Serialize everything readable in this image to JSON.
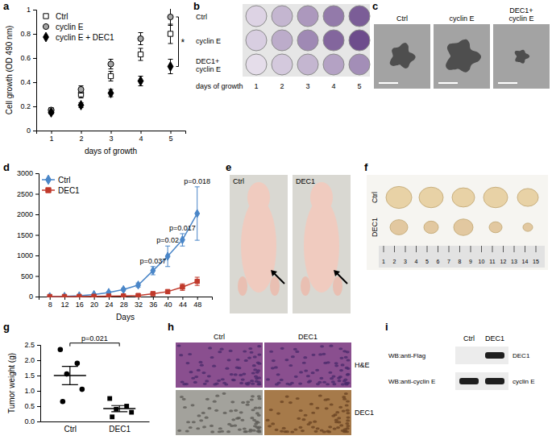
{
  "chart_data": [
    {
      "type": "scatter",
      "xlabel": "days of growth",
      "ylabel": "Cell growth (OD 490 nm)",
      "x": [
        1,
        2,
        3,
        4,
        5
      ],
      "xlim": [
        0.5,
        5.5
      ],
      "xticks": [
        1,
        2,
        3,
        4,
        5
      ],
      "ylim": [
        0,
        1
      ],
      "yticks": [
        0,
        0.2,
        0.4,
        0.6,
        0.8,
        1
      ],
      "legend": "top-left",
      "series": [
        {
          "name": "Ctrl",
          "color": "#ffffff",
          "marker": "square",
          "values": [
            0.16,
            0.3,
            0.45,
            0.63,
            0.8
          ],
          "errors": [
            0.02,
            0.03,
            0.04,
            0.05,
            0.08
          ]
        },
        {
          "name": "cyclin E",
          "color": "#a6a6a6",
          "marker": "circle",
          "values": [
            0.17,
            0.34,
            0.55,
            0.76,
            0.94
          ],
          "errors": [
            0.02,
            0.03,
            0.04,
            0.05,
            0.07
          ]
        },
        {
          "name": "cyclin E + DEC1",
          "color": "#000000",
          "marker": "diamond",
          "values": [
            0.15,
            0.21,
            0.31,
            0.41,
            0.53
          ],
          "errors": [
            0.01,
            0.02,
            0.03,
            0.04,
            0.06
          ]
        }
      ],
      "annotations": [
        {
          "text": "*",
          "x": 5,
          "between": [
            "cyclin E",
            "cyclin E + DEC1"
          ]
        }
      ]
    },
    {
      "type": "line",
      "xlabel": "Days",
      "x": [
        8,
        12,
        16,
        20,
        24,
        28,
        32,
        36,
        40,
        44,
        48
      ],
      "xlim": [
        5,
        52
      ],
      "xticks": [
        8,
        12,
        16,
        20,
        24,
        28,
        32,
        36,
        40,
        44,
        48
      ],
      "ylim": [
        0,
        3000
      ],
      "yticks": [
        0,
        500,
        1000,
        1500,
        2000,
        2500,
        3000
      ],
      "legend": "top-left",
      "series": [
        {
          "name": "Ctrl",
          "color": "#4a86c8",
          "marker": "diamond",
          "values": [
            0,
            5,
            20,
            50,
            100,
            170,
            280,
            630,
            980,
            1380,
            2020
          ],
          "errors": [
            0,
            2,
            5,
            10,
            20,
            30,
            50,
            100,
            250,
            150,
            650
          ]
        },
        {
          "name": "DEC1",
          "color": "#c0392b",
          "marker": "square",
          "values": [
            0,
            0,
            2,
            5,
            10,
            15,
            25,
            70,
            120,
            230,
            370
          ],
          "errors": [
            0,
            0,
            1,
            2,
            3,
            5,
            8,
            20,
            40,
            80,
            100
          ]
        }
      ],
      "annotations": [
        {
          "text": "p=0.037",
          "x": 36,
          "series": "Ctrl"
        },
        {
          "text": "p=0.02",
          "x": 40,
          "series": "Ctrl"
        },
        {
          "text": "p=0.017",
          "x": 44,
          "series": "Ctrl"
        },
        {
          "text": "p=0.018",
          "x": 48,
          "series": "Ctrl"
        }
      ]
    },
    {
      "type": "scatter",
      "ylabel": "Tumor weight (g)",
      "categories": [
        "Ctrl",
        "DEC1"
      ],
      "ylim": [
        0,
        2.5
      ],
      "yticks": [
        {
          "value": 0,
          "label": "0.0"
        },
        {
          "value": 0.5,
          "label": "0.5"
        },
        {
          "value": 1,
          "label": "1.0"
        },
        {
          "value": 1.5,
          "label": "1.5"
        },
        {
          "value": 2,
          "label": "2.0"
        },
        {
          "value": 2.5,
          "label": "2.5"
        }
      ],
      "color": "#000000",
      "groups": [
        {
          "marker": "circle",
          "values": [
            2.35,
            1.9,
            1.55,
            1.05,
            0.65
          ],
          "mean": 1.5,
          "error": 0.3
        },
        {
          "marker": "square",
          "values": [
            0.75,
            0.5,
            0.4,
            0.3,
            0.15
          ],
          "mean": 0.42,
          "error": 0.1
        }
      ],
      "annotations": [
        {
          "text": "p=0.021",
          "between": [
            "Ctrl",
            "DEC1"
          ]
        }
      ]
    }
  ],
  "figure": {
    "panel_labels": [
      "a",
      "b",
      "c",
      "d",
      "e",
      "f",
      "g",
      "h",
      "i"
    ],
    "images": {
      "b": {
        "rows": [
          "Ctrl",
          "cyclin E",
          "DEC1+ cyclin E"
        ],
        "columns": [
          1,
          2,
          3,
          4,
          5
        ],
        "xlabel": "days of growth"
      },
      "c": {
        "labels": [
          "Ctrl",
          "cyclin E",
          "DEC1+ cyclin E"
        ]
      },
      "e": {
        "labels": [
          "Ctrl",
          "DEC1"
        ]
      },
      "f": {
        "rows": [
          "Ctrl",
          "DEC1"
        ],
        "ruler": [
          1,
          2,
          3,
          4,
          5,
          6,
          7,
          8,
          9,
          10,
          11,
          12,
          13,
          14,
          15
        ]
      },
      "h": {
        "columns": [
          "Ctrl",
          "DEC1"
        ],
        "rows": [
          "H&E",
          "DEC1"
        ]
      },
      "i": {
        "columns": [
          "Ctrl",
          "DEC1"
        ],
        "rows": [
          {
            "antibody": "WB:anti-Flag",
            "protein": "DEC1"
          },
          {
            "antibody": "WB:anti-cyclin E",
            "protein": "cyclin E"
          }
        ]
      }
    }
  }
}
